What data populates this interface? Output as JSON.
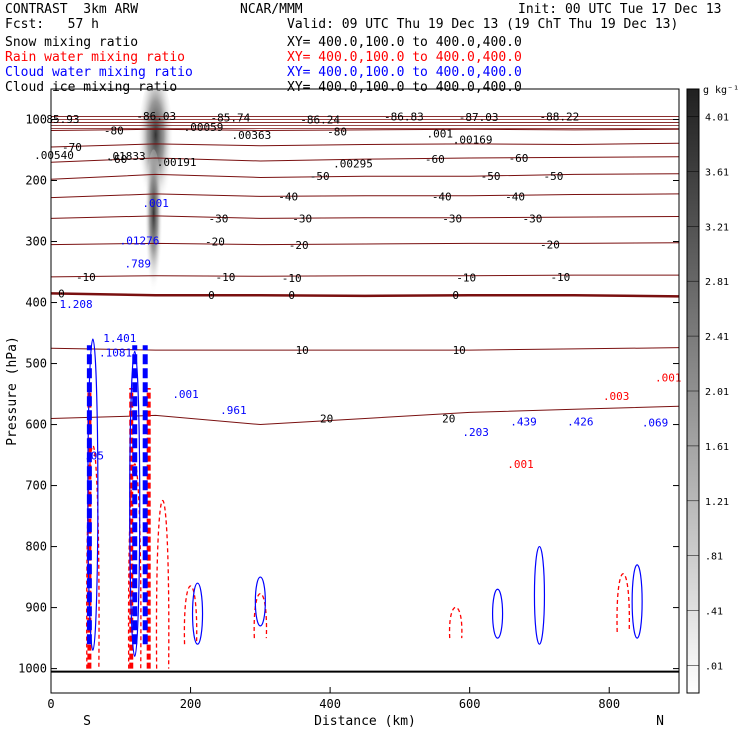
{
  "header": {
    "model": "CONTRAST  3km ARW",
    "center": "NCAR/MMM",
    "init": "Init: 00 UTC Tue 17 Dec 13",
    "fcst": "Fcst:   57 h",
    "valid": "Valid: 09 UTC Thu 19 Dec 13 (19 ChT Thu 19 Dec 13)"
  },
  "fields": [
    {
      "name": "Snow mixing ratio",
      "xy": "XY= 400.0,100.0 to 400.0,400.0",
      "color": "#000000"
    },
    {
      "name": "Rain water mixing ratio",
      "xy": "XY= 400.0,100.0 to 400.0,400.0",
      "color": "#ff0000"
    },
    {
      "name": "Cloud water mixing ratio",
      "xy": "XY= 400.0,100.0 to 400.0,400.0",
      "color": "#0000ff"
    },
    {
      "name": "Cloud ice mixing ratio",
      "xy": "XY= 400.0,100.0 to 400.0,400.0",
      "color": "#000000"
    }
  ],
  "colors": {
    "temperature": "#7a1010",
    "rain": "#ff0000",
    "cloud_water": "#0000ff",
    "snow": "#000000"
  },
  "chart_data": {
    "type": "cross-section",
    "xlabel": "Distance (km)",
    "ylabel": "Pressure (hPa)",
    "xlim": [
      0,
      900
    ],
    "ylim": [
      1040,
      50
    ],
    "x_ticks": [
      0,
      200,
      400,
      600,
      800
    ],
    "y_ticks": [
      100,
      200,
      300,
      400,
      500,
      600,
      700,
      800,
      900,
      1000
    ],
    "endpoints": {
      "left": "S",
      "right": "N"
    },
    "colorbar": {
      "unit": "g kg⁻¹",
      "levels": [
        ".01",
        ".41",
        ".81",
        "1.21",
        "1.61",
        "2.01",
        "2.41",
        "2.81",
        "3.21",
        "3.61",
        "4.01"
      ]
    },
    "temperature_contours": [
      {
        "label": "-80",
        "points": [
          [
            0,
            118
          ],
          [
            150,
            116
          ],
          [
            300,
            118
          ],
          [
            450,
            117
          ],
          [
            600,
            116
          ],
          [
            750,
            117
          ],
          [
            900,
            116
          ]
        ],
        "labels_at": [
          [
            90,
            118
          ],
          [
            410,
            120
          ]
        ]
      },
      {
        "label": "-70",
        "points": [
          [
            0,
            145
          ],
          [
            150,
            140
          ],
          [
            300,
            143
          ],
          [
            450,
            141
          ],
          [
            600,
            140
          ],
          [
            750,
            141
          ],
          [
            900,
            139
          ]
        ],
        "labels_at": [
          [
            30,
            145
          ]
        ]
      },
      {
        "label": "-60",
        "points": [
          [
            0,
            170
          ],
          [
            150,
            163
          ],
          [
            300,
            168
          ],
          [
            450,
            165
          ],
          [
            600,
            163
          ],
          [
            750,
            162
          ],
          [
            900,
            161
          ]
        ],
        "labels_at": [
          [
            95,
            165
          ],
          [
            550,
            165
          ],
          [
            670,
            163
          ]
        ]
      },
      {
        "label": "-50",
        "points": [
          [
            0,
            198
          ],
          [
            150,
            190
          ],
          [
            300,
            195
          ],
          [
            450,
            193
          ],
          [
            600,
            193
          ],
          [
            750,
            190
          ],
          [
            900,
            189
          ]
        ],
        "labels_at": [
          [
            385,
            193
          ],
          [
            630,
            193
          ],
          [
            720,
            193
          ]
        ]
      },
      {
        "label": "-40",
        "points": [
          [
            0,
            228
          ],
          [
            150,
            222
          ],
          [
            300,
            226
          ],
          [
            450,
            225
          ],
          [
            600,
            225
          ],
          [
            750,
            223
          ],
          [
            900,
            222
          ]
        ],
        "labels_at": [
          [
            340,
            226
          ],
          [
            560,
            226
          ],
          [
            665,
            226
          ]
        ]
      },
      {
        "label": "-30",
        "points": [
          [
            0,
            262
          ],
          [
            150,
            258
          ],
          [
            300,
            262
          ],
          [
            450,
            261
          ],
          [
            600,
            261
          ],
          [
            750,
            260
          ],
          [
            900,
            259
          ]
        ],
        "labels_at": [
          [
            240,
            262
          ],
          [
            360,
            262
          ],
          [
            575,
            262
          ],
          [
            690,
            262
          ]
        ]
      },
      {
        "label": "-20",
        "points": [
          [
            0,
            305
          ],
          [
            150,
            303
          ],
          [
            300,
            305
          ],
          [
            450,
            304
          ],
          [
            600,
            303
          ],
          [
            750,
            303
          ],
          [
            900,
            302
          ]
        ],
        "labels_at": [
          [
            235,
            300
          ],
          [
            355,
            306
          ],
          [
            715,
            305
          ]
        ]
      },
      {
        "label": "-10",
        "points": [
          [
            0,
            358
          ],
          [
            150,
            356
          ],
          [
            300,
            357
          ],
          [
            450,
            356
          ],
          [
            600,
            356
          ],
          [
            750,
            355
          ],
          [
            900,
            355
          ]
        ],
        "labels_at": [
          [
            50,
            358
          ],
          [
            250,
            358
          ],
          [
            345,
            360
          ],
          [
            595,
            359
          ],
          [
            730,
            358
          ]
        ]
      },
      {
        "label": "0",
        "points": [
          [
            0,
            385
          ],
          [
            150,
            388
          ],
          [
            300,
            388
          ],
          [
            450,
            389
          ],
          [
            600,
            388
          ],
          [
            750,
            388
          ],
          [
            900,
            390
          ]
        ],
        "labels_at": [
          [
            15,
            385
          ],
          [
            230,
            388
          ],
          [
            345,
            388
          ],
          [
            580,
            388
          ]
        ]
      },
      {
        "label": "10",
        "points": [
          [
            0,
            475
          ],
          [
            150,
            478
          ],
          [
            300,
            478
          ],
          [
            450,
            478
          ],
          [
            600,
            478
          ],
          [
            750,
            476
          ],
          [
            900,
            474
          ]
        ],
        "labels_at": [
          [
            360,
            478
          ],
          [
            585,
            478
          ]
        ]
      },
      {
        "label": "20",
        "points": [
          [
            0,
            590
          ],
          [
            150,
            585
          ],
          [
            300,
            600
          ],
          [
            450,
            590
          ],
          [
            600,
            580
          ],
          [
            750,
            575
          ],
          [
            900,
            570
          ]
        ],
        "labels_at": [
          [
            395,
            590
          ],
          [
            570,
            590
          ]
        ]
      }
    ],
    "snow_max_labels": [
      {
        "text": ".00059",
        "x": 255,
        "y": 112
      },
      {
        "text": ".00363",
        "x": 335,
        "y": 125
      },
      {
        "text": ".001",
        "x": 650,
        "y": 123
      },
      {
        "text": ".00169",
        "x": 705,
        "y": 133
      },
      {
        "text": ".01833",
        "x": 125,
        "y": 160
      },
      {
        "text": ".00191",
        "x": 210,
        "y": 170
      },
      {
        "text": ".00295",
        "x": 505,
        "y": 172
      },
      {
        "text": ".00540",
        "x": 5,
        "y": 158
      }
    ],
    "low_labels": [
      {
        "text": "85.93",
        "x": 20,
        "y": 99
      },
      {
        "text": "-86.03",
        "x": 176,
        "y": 94
      },
      {
        "text": "-85.74",
        "x": 300,
        "y": 97
      },
      {
        "text": "-86.24",
        "x": 450,
        "y": 100
      },
      {
        "text": "-86.83",
        "x": 590,
        "y": 95
      },
      {
        "text": "-87.03",
        "x": 715,
        "y": 96
      },
      {
        "text": "-88.22",
        "x": 850,
        "y": 95
      }
    ],
    "cloud_water_labels": [
      {
        "text": ".001",
        "x": 175,
        "y": 237
      },
      {
        "text": ".01276",
        "x": 148,
        "y": 298
      },
      {
        "text": ".789",
        "x": 145,
        "y": 336
      },
      {
        "text": "1.208",
        "x": 42,
        "y": 402
      },
      {
        "text": "1.401",
        "x": 115,
        "y": 458
      },
      {
        "text": ".1081",
        "x": 108,
        "y": 482
      },
      {
        "text": ".001",
        "x": 225,
        "y": 550
      },
      {
        "text": ".961",
        "x": 305,
        "y": 576
      },
      {
        "text": ".203",
        "x": 710,
        "y": 612
      },
      {
        "text": ".439",
        "x": 790,
        "y": 595
      },
      {
        "text": ".426",
        "x": 885,
        "y": 595
      },
      {
        "text": ".069",
        "x": 1010,
        "y": 597
      },
      {
        "text": ".05",
        "x": 72,
        "y": 651
      }
    ],
    "rain_labels": [
      {
        "text": ".003",
        "x": 945,
        "y": 553
      },
      {
        "text": ".001",
        "x": 1032,
        "y": 523
      },
      {
        "text": ".001",
        "x": 785,
        "y": 665
      }
    ],
    "rain_cells": [
      [
        60,
        1000,
        480
      ],
      [
        120,
        1000,
        520
      ],
      [
        160,
        1000,
        600
      ],
      [
        200,
        960,
        800
      ],
      [
        300,
        950,
        820
      ],
      [
        580,
        950,
        850
      ],
      [
        820,
        940,
        780
      ]
    ],
    "cloud_water_cells": [
      [
        60,
        970,
        460
      ],
      [
        120,
        980,
        480
      ],
      [
        210,
        960,
        860
      ],
      [
        300,
        930,
        850
      ],
      [
        640,
        950,
        870
      ],
      [
        700,
        960,
        800
      ],
      [
        840,
        950,
        830
      ]
    ],
    "snow_max": {
      "x": 150,
      "y": 120,
      "value": 4.01
    }
  }
}
